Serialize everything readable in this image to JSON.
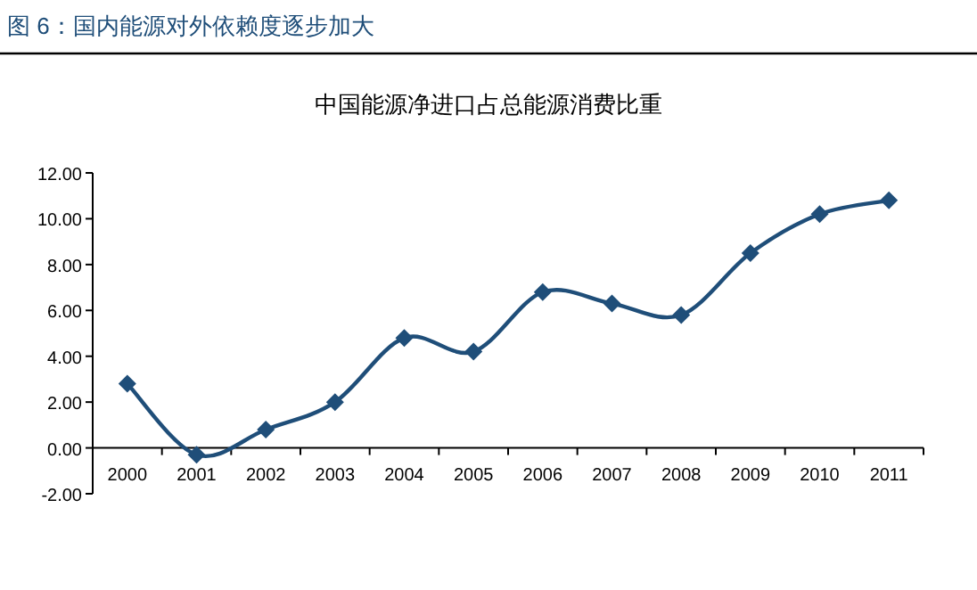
{
  "chart_data": {
    "type": "line",
    "title": "图 6：国内能源对外依赖度逐步加大",
    "subtitle": "中国能源净进口占总能源消费比重",
    "categories": [
      "2000",
      "2001",
      "2002",
      "2003",
      "2004",
      "2005",
      "2006",
      "2007",
      "2008",
      "2009",
      "2010",
      "2011"
    ],
    "series": [
      {
        "color": "#1f4e79",
        "values": [
          2.8,
          -0.3,
          0.8,
          2.0,
          4.8,
          4.2,
          6.8,
          6.3,
          5.8,
          8.5,
          10.2,
          10.8
        ]
      }
    ],
    "ylim": [
      -2,
      12
    ],
    "yticks": [
      {
        "value": -2,
        "label": "-2.00"
      },
      {
        "value": 0,
        "label": "0.00"
      },
      {
        "value": 2,
        "label": "2.00"
      },
      {
        "value": 4,
        "label": "4.00"
      },
      {
        "value": 6,
        "label": "6.00"
      },
      {
        "value": 8,
        "label": "8.00"
      },
      {
        "value": 10,
        "label": "10.00"
      },
      {
        "value": 12,
        "label": "12.00"
      }
    ],
    "marker": "diamond",
    "grid": false
  }
}
